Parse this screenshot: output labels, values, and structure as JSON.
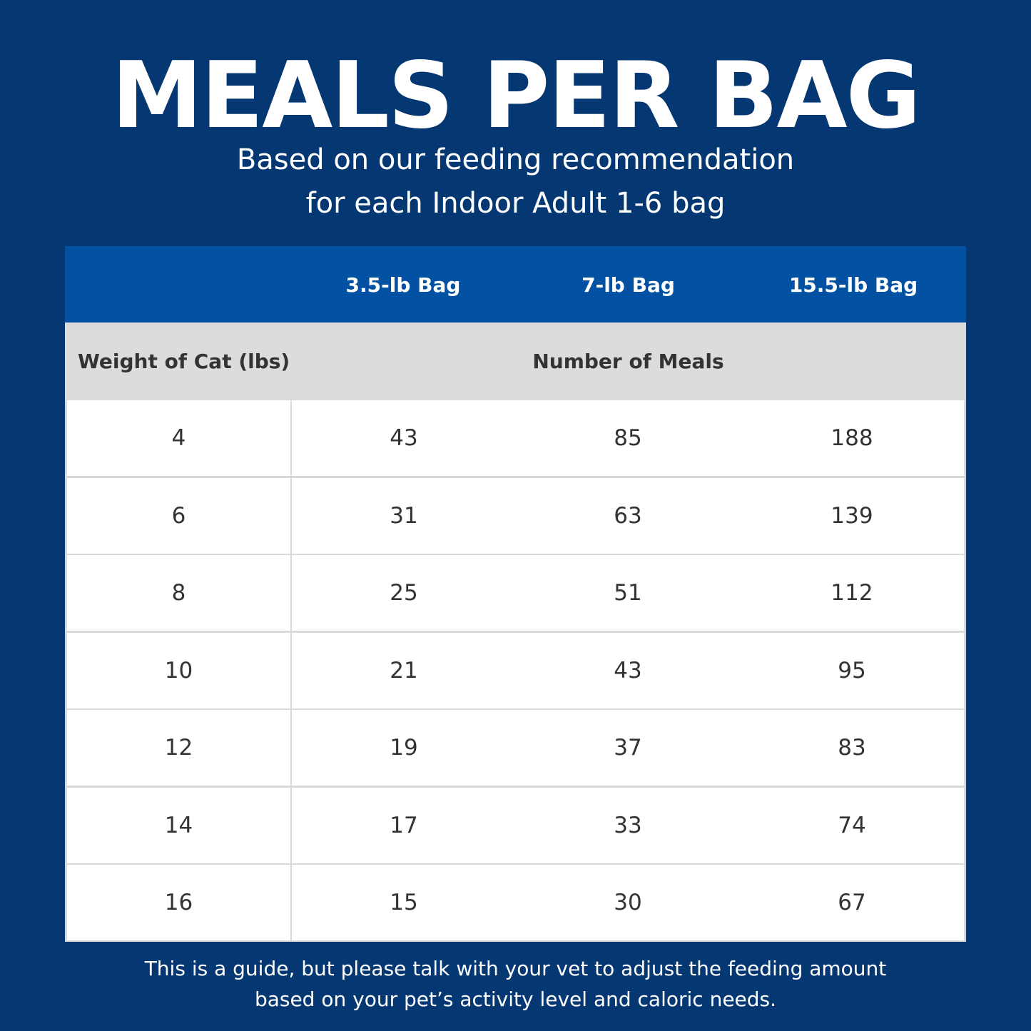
{
  "title": "MEALS PER BAG",
  "subtitle": {
    "line1": "Based on our feeding recommendation",
    "line2": "for each Indoor Adult 1-6 bag"
  },
  "table": {
    "headers": [
      "",
      "3.5-lb Bag",
      "7-lb Bag",
      "15.5-lb Bag"
    ],
    "row_label_header": "Weight of Cat (lbs)",
    "value_group_header": "Number of Meals",
    "rows": [
      [
        "4",
        "43",
        "85",
        "188"
      ],
      [
        "6",
        "31",
        "63",
        "139"
      ],
      [
        "8",
        "25",
        "51",
        "112"
      ],
      [
        "10",
        "21",
        "43",
        "95"
      ],
      [
        "12",
        "19",
        "37",
        "83"
      ],
      [
        "14",
        "17",
        "33",
        "74"
      ],
      [
        "16",
        "15",
        "30",
        "67"
      ]
    ]
  },
  "footer": {
    "line1": "This is a guide, but please talk with your vet to adjust the feeding amount",
    "line2": "based on your pet’s activity level and caloric needs."
  },
  "colors": {
    "background": "#053873",
    "header_band": "#0351a3",
    "subheader_band": "#dcdcdc",
    "cell": "#ffffff",
    "text_dark": "#333333"
  }
}
